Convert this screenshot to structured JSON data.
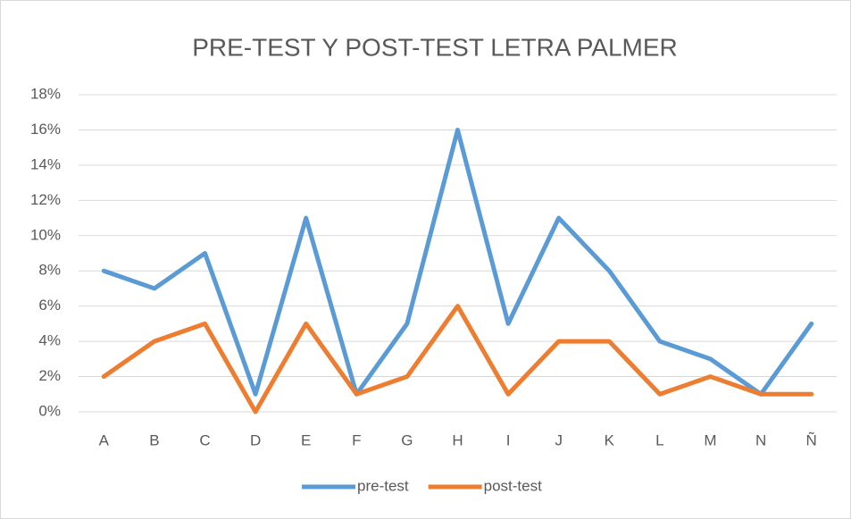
{
  "chart_data": {
    "type": "line",
    "title": "PRE-TEST Y POST-TEST LETRA PALMER",
    "categories": [
      "A",
      "B",
      "C",
      "D",
      "E",
      "F",
      "G",
      "H",
      "I",
      "J",
      "K",
      "L",
      "M",
      "N",
      "Ñ"
    ],
    "series": [
      {
        "name": "pre-test",
        "color": "#5b9bd5",
        "values": [
          8,
          7,
          9,
          1,
          11,
          1,
          5,
          16,
          5,
          11,
          8,
          4,
          3,
          1,
          5
        ]
      },
      {
        "name": "post-test",
        "color": "#ed7d31",
        "values": [
          2,
          4,
          5,
          0,
          5,
          1,
          2,
          6,
          1,
          4,
          4,
          1,
          2,
          1,
          1
        ]
      }
    ],
    "ylim": [
      0,
      18
    ],
    "yticks": [
      {
        "value": 0,
        "label": "0%"
      },
      {
        "value": 2,
        "label": "2%"
      },
      {
        "value": 4,
        "label": "4%"
      },
      {
        "value": 6,
        "label": "6%"
      },
      {
        "value": 8,
        "label": "8%"
      },
      {
        "value": 10,
        "label": "10%"
      },
      {
        "value": 12,
        "label": "12%"
      },
      {
        "value": 14,
        "label": "14%"
      },
      {
        "value": 16,
        "label": "16%"
      },
      {
        "value": 18,
        "label": "18%"
      }
    ],
    "grid": true,
    "legend": "bottom"
  }
}
